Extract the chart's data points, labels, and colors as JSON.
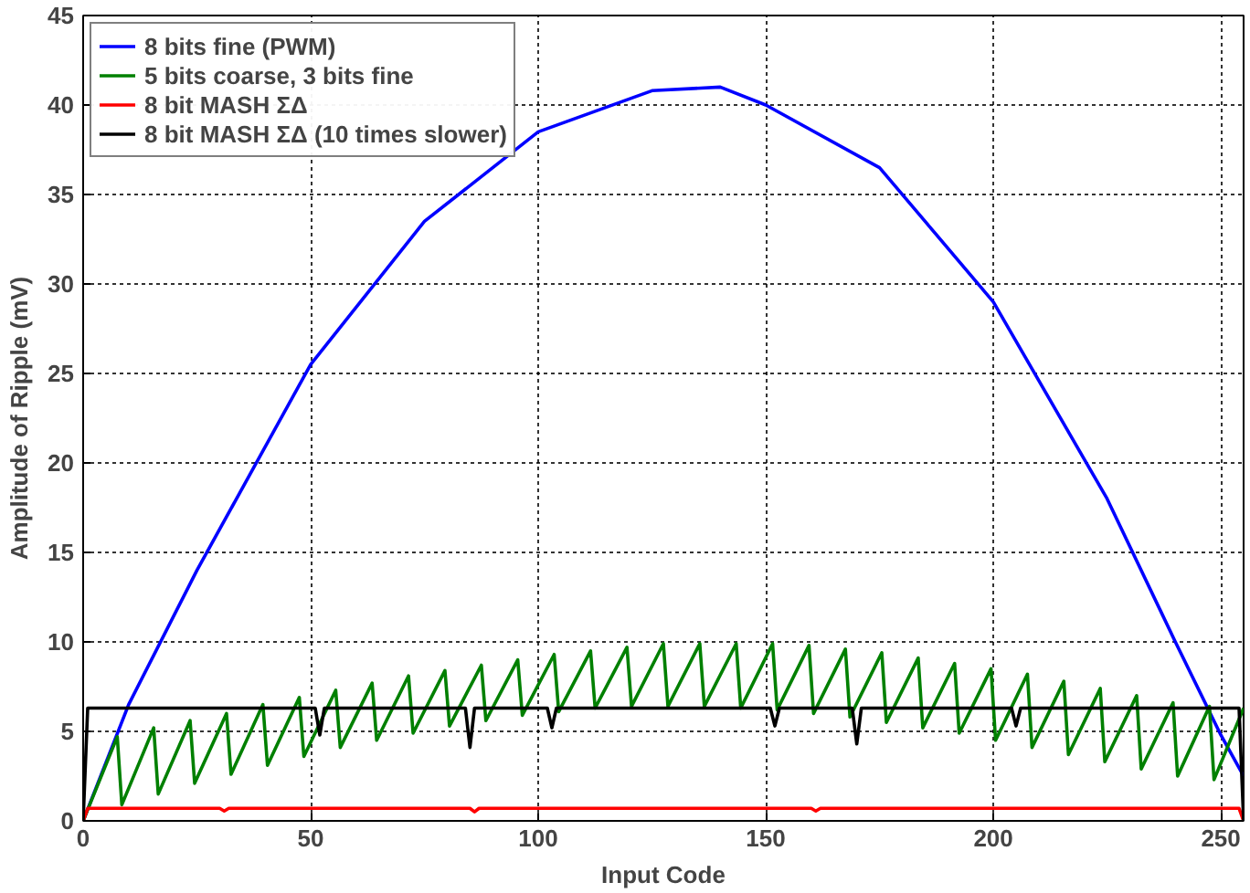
{
  "chart_data": {
    "type": "line",
    "xlabel": "Input Code",
    "ylabel": "Amplitude of Ripple (mV)",
    "xlim": [
      0,
      255
    ],
    "ylim": [
      0,
      45
    ],
    "xticks": [
      0,
      50,
      100,
      150,
      200,
      250
    ],
    "yticks": [
      0,
      5,
      10,
      15,
      20,
      25,
      30,
      35,
      40,
      45
    ],
    "grid": true,
    "legend": "top left",
    "line_style": "solid",
    "series": [
      {
        "name": "8 bits fine (PWM)",
        "color": "#0000ff",
        "x": [
          0,
          10,
          25,
          50,
          75,
          100,
          125,
          140,
          150,
          175,
          200,
          225,
          240,
          250,
          255
        ],
        "values": [
          0,
          6.5,
          14,
          25.5,
          33.5,
          38.5,
          40.8,
          41,
          40,
          36.5,
          29,
          18,
          10,
          4.8,
          2.5
        ]
      },
      {
        "name": "5 bits coarse, 3 bits fine",
        "color": "#008000",
        "x": [
          0,
          7.5,
          8.5,
          15.5,
          16.5,
          23.5,
          24.5,
          31.5,
          32.5,
          39.5,
          40.5,
          47.5,
          48.5,
          55.5,
          56.5,
          63.5,
          64.5,
          71.5,
          72.5,
          79.5,
          80.5,
          87.5,
          88.5,
          95.5,
          96.5,
          103.5,
          104.5,
          111.5,
          112.5,
          119.5,
          120.5,
          127.5,
          128.5,
          135.5,
          136.5,
          143.5,
          144.5,
          151.5,
          152.5,
          159.5,
          160.5,
          167.5,
          168.5,
          175.5,
          176.5,
          183.5,
          184.5,
          191.5,
          192.5,
          199.5,
          200.5,
          207.5,
          208.5,
          215.5,
          216.5,
          223.5,
          224.5,
          231.5,
          232.5,
          239.5,
          240.5,
          247.5,
          248.5,
          255
        ],
        "values": [
          0,
          4.7,
          0.9,
          5.2,
          1.5,
          5.6,
          2.1,
          6.0,
          2.6,
          6.5,
          3.1,
          6.9,
          3.6,
          7.3,
          4.1,
          7.7,
          4.5,
          8.1,
          4.9,
          8.4,
          5.3,
          8.7,
          5.6,
          9.0,
          5.9,
          9.3,
          6.1,
          9.5,
          6.3,
          9.7,
          6.4,
          9.9,
          6.4,
          9.9,
          6.4,
          9.9,
          6.3,
          9.9,
          6.2,
          9.8,
          6.0,
          9.6,
          5.8,
          9.4,
          5.5,
          9.1,
          5.2,
          8.8,
          4.9,
          8.5,
          4.5,
          8.2,
          4.1,
          7.8,
          3.7,
          7.4,
          3.3,
          7.0,
          2.9,
          6.6,
          2.5,
          6.4,
          2.3,
          6.3
        ]
      },
      {
        "name": "8 bit MASH ΣΔ",
        "color": "#ff0000",
        "x": [
          0,
          1,
          30,
          31,
          32,
          85,
          86,
          87,
          160,
          161,
          162,
          254,
          255
        ],
        "values": [
          0,
          0.7,
          0.7,
          0.55,
          0.7,
          0.7,
          0.5,
          0.7,
          0.7,
          0.55,
          0.7,
          0.7,
          0
        ]
      },
      {
        "name": "8 bit MASH ΣΔ (10 times slower)",
        "color": "#000000",
        "x": [
          0,
          1,
          51,
          52,
          53,
          84,
          85,
          86,
          102,
          103,
          104,
          151,
          152,
          153,
          169,
          170,
          171,
          204,
          205,
          206,
          254,
          255
        ],
        "values": [
          0,
          6.3,
          6.3,
          4.8,
          6.3,
          6.3,
          4.1,
          6.3,
          6.3,
          5.2,
          6.3,
          6.3,
          5.3,
          6.3,
          6.3,
          4.3,
          6.3,
          6.3,
          5.3,
          6.3,
          6.3,
          0
        ]
      }
    ]
  }
}
